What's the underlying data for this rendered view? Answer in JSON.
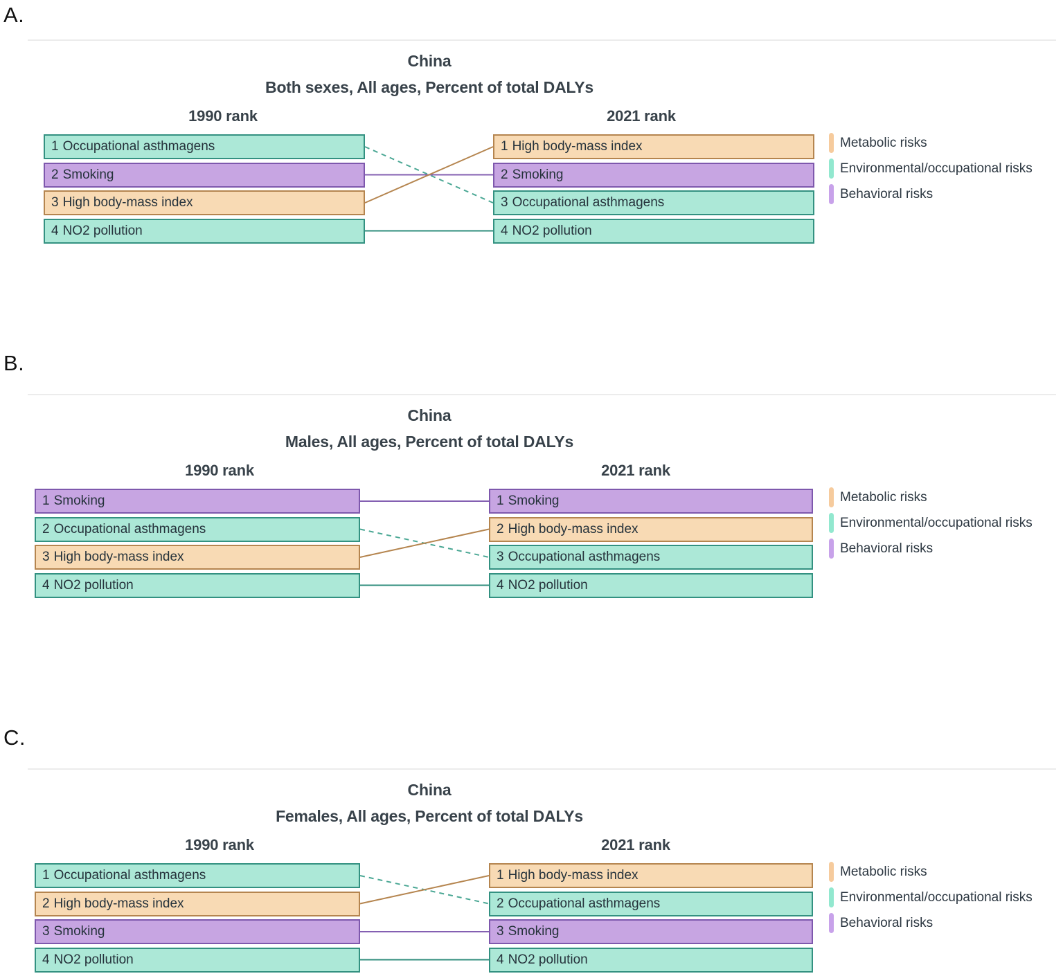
{
  "colors": {
    "background": "#ffffff",
    "divider": "#ececec",
    "title_text": "#38424a",
    "box_text": "#25323b",
    "panel_letter": "#111111"
  },
  "categories": {
    "metabolic": {
      "label": "Metabolic risks",
      "fill": "#f8dab4",
      "border": "#b5854f",
      "line": "#b5854f",
      "legend_swatch": "#f6cb9d"
    },
    "environmental": {
      "label": "Environmental/occupational risks",
      "fill": "#ace8d7",
      "border": "#339181",
      "line": "#2f8d7c",
      "line_dashed": "#4aa794",
      "legend_swatch": "#92e8cf"
    },
    "behavioral": {
      "label": "Behavioral risks",
      "fill": "#c7a5e2",
      "border": "#7e58ad",
      "line": "#8460b2",
      "legend_swatch": "#c8a2ea"
    }
  },
  "legend_items": [
    {
      "label": "Metabolic risks",
      "category": "metabolic"
    },
    {
      "label": "Environmental/occupational risks",
      "category": "environmental"
    },
    {
      "label": "Behavioral risks",
      "category": "behavioral"
    }
  ],
  "chart_data": [
    {
      "type": "line",
      "subtype": "rank-change-slope",
      "panel_label": "A.",
      "title": "China",
      "subtitle": "Both sexes, All ages, Percent of total DALYs",
      "columns": [
        "1990 rank",
        "2021 rank"
      ],
      "legend_position": "right",
      "series": [
        {
          "name": "Occupational asthmagens",
          "category": "environmental",
          "ranks": [
            1,
            3
          ],
          "line_style": "dashed"
        },
        {
          "name": "Smoking",
          "category": "behavioral",
          "ranks": [
            2,
            2
          ],
          "line_style": "solid"
        },
        {
          "name": "High body-mass index",
          "category": "metabolic",
          "ranks": [
            3,
            1
          ],
          "line_style": "solid"
        },
        {
          "name": "NO2 pollution",
          "category": "environmental",
          "ranks": [
            4,
            4
          ],
          "line_style": "solid"
        }
      ]
    },
    {
      "type": "line",
      "subtype": "rank-change-slope",
      "panel_label": "B.",
      "title": "China",
      "subtitle": "Males, All ages, Percent of total DALYs",
      "columns": [
        "1990 rank",
        "2021 rank"
      ],
      "legend_position": "right",
      "series": [
        {
          "name": "Smoking",
          "category": "behavioral",
          "ranks": [
            1,
            1
          ],
          "line_style": "solid"
        },
        {
          "name": "Occupational asthmagens",
          "category": "environmental",
          "ranks": [
            2,
            3
          ],
          "line_style": "dashed"
        },
        {
          "name": "High body-mass index",
          "category": "metabolic",
          "ranks": [
            3,
            2
          ],
          "line_style": "solid"
        },
        {
          "name": "NO2 pollution",
          "category": "environmental",
          "ranks": [
            4,
            4
          ],
          "line_style": "solid"
        }
      ]
    },
    {
      "type": "line",
      "subtype": "rank-change-slope",
      "panel_label": "C.",
      "title": "China",
      "subtitle": "Females, All ages, Percent of total DALYs",
      "columns": [
        "1990 rank",
        "2021 rank"
      ],
      "legend_position": "right",
      "series": [
        {
          "name": "Occupational asthmagens",
          "category": "environmental",
          "ranks": [
            1,
            2
          ],
          "line_style": "dashed"
        },
        {
          "name": "High body-mass index",
          "category": "metabolic",
          "ranks": [
            2,
            1
          ],
          "line_style": "solid"
        },
        {
          "name": "Smoking",
          "category": "behavioral",
          "ranks": [
            3,
            3
          ],
          "line_style": "solid"
        },
        {
          "name": "NO2 pollution",
          "category": "environmental",
          "ranks": [
            4,
            4
          ],
          "line_style": "solid"
        }
      ]
    }
  ]
}
